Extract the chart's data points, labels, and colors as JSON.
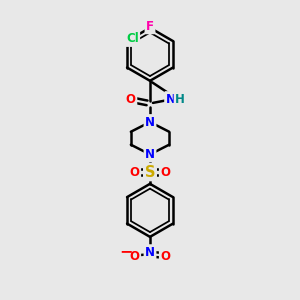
{
  "bg_color": "#e8e8e8",
  "bond_color": "#000000",
  "bond_width": 1.8,
  "atom_colors": {
    "C": "#000000",
    "N": "#0000ff",
    "O": "#ff0000",
    "S": "#ccaa00",
    "F": "#ff00aa",
    "Cl": "#00cc44",
    "H": "#008888"
  },
  "font_size": 8.5
}
